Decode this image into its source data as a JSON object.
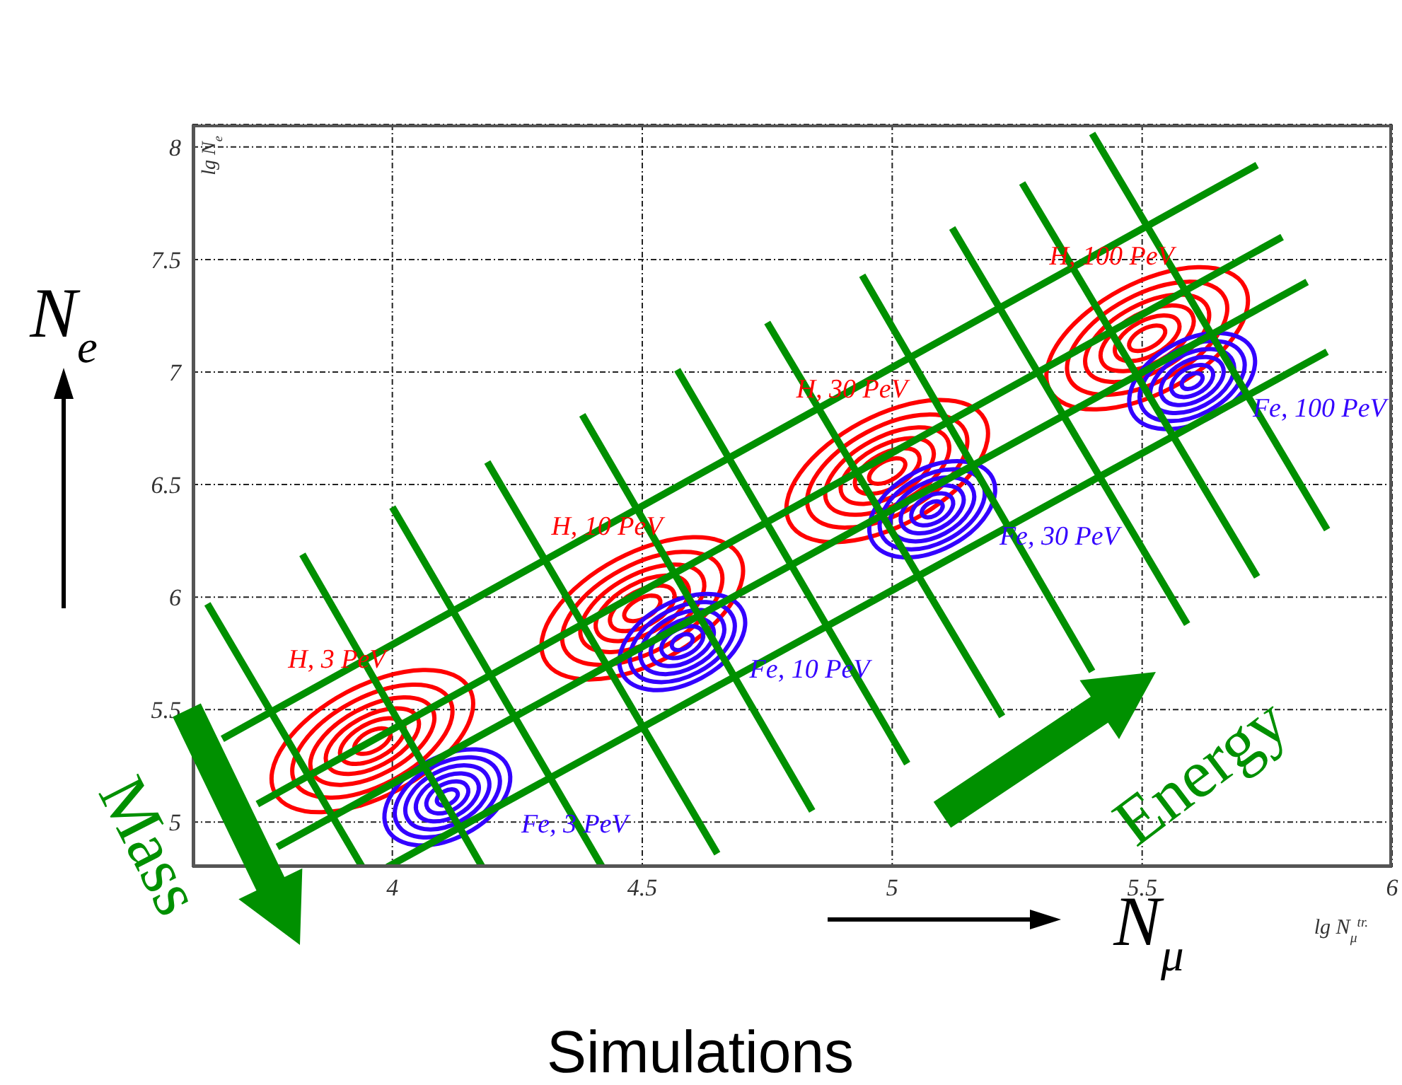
{
  "chart_data": {
    "type": "scatter",
    "xlabel": "lg N$_{μ}$$^{tr.}$",
    "ylabel": "lg N$_{e}$",
    "xlim": [
      3.6,
      6
    ],
    "xticks": [
      4,
      4.5,
      5,
      5.5,
      6
    ],
    "ylim": [
      4.8,
      8.1
    ],
    "yticks": [
      5,
      5.5,
      6,
      6.5,
      7,
      7.5,
      8
    ],
    "grid": true,
    "annotations": [
      "N$_{e}$",
      "N$_{μ}$",
      "Mass",
      "Energy",
      "Simulations"
    ],
    "series": [
      {
        "type": "scatter",
        "name": "H, 3 PeV",
        "color": "#ff0000",
        "x": [
          3.96
        ],
        "values": [
          5.36
        ]
      },
      {
        "type": "scatter",
        "name": "Fe, 3 PeV",
        "color": "#3300ff",
        "x": [
          4.11
        ],
        "values": [
          5.11
        ]
      },
      {
        "type": "scatter",
        "name": "H, 10 PeV",
        "color": "#ff0000",
        "x": [
          4.5
        ],
        "values": [
          5.95
        ]
      },
      {
        "type": "scatter",
        "name": "Fe, 10 PeV",
        "color": "#3300ff",
        "x": [
          4.58
        ],
        "values": [
          5.8
        ]
      },
      {
        "type": "scatter",
        "name": "H, 30 PeV",
        "color": "#ff0000",
        "x": [
          4.99
        ],
        "values": [
          6.56
        ]
      },
      {
        "type": "scatter",
        "name": "Fe, 30 PeV",
        "color": "#3300ff",
        "x": [
          5.08
        ],
        "values": [
          6.39
        ]
      },
      {
        "type": "scatter",
        "name": "H, 100 PeV",
        "color": "#ff0000",
        "x": [
          5.51
        ],
        "values": [
          7.15
        ]
      },
      {
        "type": "scatter",
        "name": "Fe, 100 PeV",
        "color": "#3300ff",
        "x": [
          5.6
        ],
        "values": [
          6.96
        ]
      },
      {
        "type": "line",
        "color": "#009000",
        "x": [
          3.66,
          5.73
        ],
        "values": [
          5.37,
          7.92
        ]
      },
      {
        "type": "line",
        "color": "#009000",
        "x": [
          3.73,
          5.78
        ],
        "values": [
          5.08,
          7.6
        ]
      },
      {
        "type": "line",
        "color": "#009000",
        "x": [
          3.77,
          5.83
        ],
        "values": [
          4.89,
          7.4
        ]
      },
      {
        "type": "line",
        "color": "#009000",
        "x": [
          3.99,
          5.87
        ],
        "values": [
          4.8,
          7.09
        ]
      },
      {
        "type": "line",
        "color": "#009000",
        "x": [
          3.63,
          3.94
        ],
        "values": [
          5.97,
          4.8
        ]
      },
      {
        "type": "line",
        "color": "#009000",
        "x": [
          3.82,
          4.18
        ],
        "values": [
          6.19,
          4.8
        ]
      },
      {
        "type": "line",
        "color": "#009000",
        "x": [
          4.0,
          4.42
        ],
        "values": [
          6.4,
          4.8
        ]
      },
      {
        "type": "line",
        "color": "#009000",
        "x": [
          4.19,
          4.65
        ],
        "values": [
          6.6,
          4.86
        ]
      },
      {
        "type": "line",
        "color": "#009000",
        "x": [
          4.38,
          4.84
        ],
        "values": [
          6.81,
          5.05
        ]
      },
      {
        "type": "line",
        "color": "#009000",
        "x": [
          4.57,
          5.03
        ],
        "values": [
          7.01,
          5.26
        ]
      },
      {
        "type": "line",
        "color": "#009000",
        "x": [
          4.75,
          5.22
        ],
        "values": [
          7.22,
          5.47
        ]
      },
      {
        "type": "line",
        "color": "#009000",
        "x": [
          4.94,
          5.4
        ],
        "values": [
          7.43,
          5.67
        ]
      },
      {
        "type": "line",
        "color": "#009000",
        "x": [
          5.12,
          5.59
        ],
        "values": [
          7.64,
          5.88
        ]
      },
      {
        "type": "line",
        "color": "#009000",
        "x": [
          5.26,
          5.73
        ],
        "values": [
          7.84,
          6.09
        ]
      },
      {
        "type": "line",
        "color": "#009000",
        "x": [
          5.4,
          5.87
        ],
        "values": [
          8.06,
          6.3
        ]
      }
    ]
  }
}
